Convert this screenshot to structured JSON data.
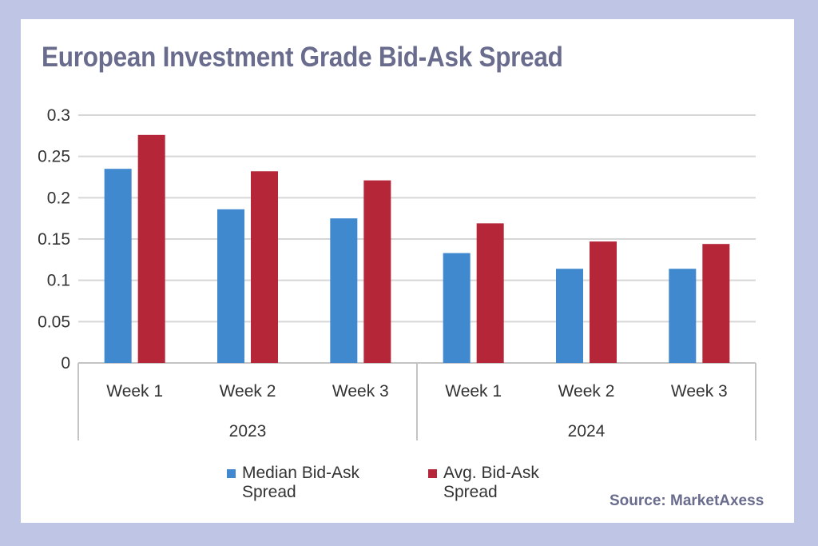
{
  "chart_data": {
    "type": "bar",
    "title": "European Investment Grade Bid-Ask Spread",
    "categories": [
      "Week 1",
      "Week 2",
      "Week 3",
      "Week 1",
      "Week 2",
      "Week 3"
    ],
    "groups": [
      {
        "label": "2023",
        "categories": [
          "Week 1",
          "Week 2",
          "Week 3"
        ]
      },
      {
        "label": "2024",
        "categories": [
          "Week 1",
          "Week 2",
          "Week 3"
        ]
      }
    ],
    "series": [
      {
        "name": "Median Bid-Ask Spread",
        "color": "#4189cf",
        "values": [
          0.235,
          0.186,
          0.175,
          0.133,
          0.114,
          0.114
        ]
      },
      {
        "name": "Avg. Bid-Ask Spread",
        "color": "#b52638",
        "values": [
          0.276,
          0.232,
          0.221,
          0.169,
          0.147,
          0.144
        ]
      }
    ],
    "ylim": [
      0,
      0.3
    ],
    "yticks": [
      "0",
      "0.05",
      "0.1",
      "0.15",
      "0.2",
      "0.25",
      "0.3"
    ],
    "grid": true,
    "legend": "bottom"
  },
  "source": "Source: MarketAxess"
}
